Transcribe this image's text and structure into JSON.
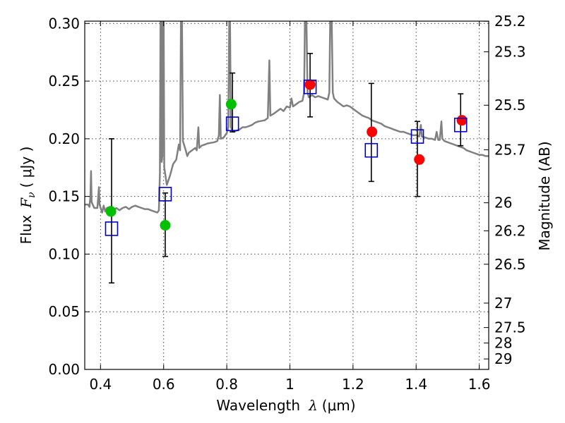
{
  "chart_data": {
    "type": "scatter",
    "xlabel_prefix": "Wavelength",
    "xlabel_lambda": "λ",
    "xlabel_units": "(μm)",
    "ylabel_prefix": "Flux",
    "ylabel_symbol": "F",
    "ylabel_sub": "ν",
    "ylabel_units": "( μJy )",
    "ylabel_right": "Magnitude (AB)",
    "xlim": [
      0.35,
      1.63
    ],
    "ylim": [
      0.0,
      0.302
    ],
    "xticks": [
      0.4,
      0.6,
      0.8,
      1.0,
      1.2,
      1.4,
      1.6
    ],
    "xtick_labels": [
      "0.4",
      "0.6",
      "0.8",
      "1",
      "1.2",
      "1.4",
      "1.6"
    ],
    "yticks": [
      0.0,
      0.05,
      0.1,
      0.15,
      0.2,
      0.25,
      0.3
    ],
    "ytick_labels": [
      "0.00",
      "0.05",
      "0.10",
      "0.15",
      "0.20",
      "0.25",
      "0.30"
    ],
    "right_ticks": [
      {
        "label": "25.2",
        "flux": 0.3019
      },
      {
        "label": "25.3",
        "flux": 0.2754
      },
      {
        "label": "25.5",
        "flux": 0.2291
      },
      {
        "label": "25.7",
        "flux": 0.1905
      },
      {
        "label": "26",
        "flux": 0.1445
      },
      {
        "label": "26.2",
        "flux": 0.1202
      },
      {
        "label": "26.5",
        "flux": 0.0912
      },
      {
        "label": "27",
        "flux": 0.0575
      },
      {
        "label": "27.5",
        "flux": 0.0363
      },
      {
        "label": "28",
        "flux": 0.0229
      },
      {
        "label": "29",
        "flux": 0.0091
      }
    ],
    "grid": true,
    "colors": {
      "model": "#808080",
      "green": "#00c000",
      "red": "#ff0000",
      "square": "#0000cc",
      "errorbar": "#000000"
    },
    "model_spectrum": [
      [
        0.35,
        0.143
      ],
      [
        0.36,
        0.143
      ],
      [
        0.365,
        0.141
      ],
      [
        0.368,
        0.15
      ],
      [
        0.37,
        0.172
      ],
      [
        0.372,
        0.145
      ],
      [
        0.38,
        0.14
      ],
      [
        0.39,
        0.14
      ],
      [
        0.395,
        0.158
      ],
      [
        0.397,
        0.143
      ],
      [
        0.405,
        0.136
      ],
      [
        0.41,
        0.142
      ],
      [
        0.415,
        0.137
      ],
      [
        0.42,
        0.14
      ],
      [
        0.43,
        0.141
      ],
      [
        0.44,
        0.137
      ],
      [
        0.45,
        0.14
      ],
      [
        0.46,
        0.138
      ],
      [
        0.47,
        0.14
      ],
      [
        0.48,
        0.141
      ],
      [
        0.49,
        0.139
      ],
      [
        0.5,
        0.141
      ],
      [
        0.51,
        0.142
      ],
      [
        0.52,
        0.141
      ],
      [
        0.53,
        0.14
      ],
      [
        0.54,
        0.139
      ],
      [
        0.55,
        0.139
      ],
      [
        0.56,
        0.138
      ],
      [
        0.57,
        0.137
      ],
      [
        0.58,
        0.136
      ],
      [
        0.585,
        0.138
      ],
      [
        0.588,
        0.17
      ],
      [
        0.59,
        0.31
      ],
      [
        0.592,
        0.31
      ],
      [
        0.594,
        0.18
      ],
      [
        0.596,
        0.185
      ],
      [
        0.598,
        0.31
      ],
      [
        0.6,
        0.31
      ],
      [
        0.602,
        0.175
      ],
      [
        0.61,
        0.16
      ],
      [
        0.62,
        0.168
      ],
      [
        0.63,
        0.178
      ],
      [
        0.64,
        0.182
      ],
      [
        0.648,
        0.195
      ],
      [
        0.652,
        0.19
      ],
      [
        0.655,
        0.31
      ],
      [
        0.658,
        0.31
      ],
      [
        0.661,
        0.198
      ],
      [
        0.67,
        0.19
      ],
      [
        0.675,
        0.185
      ],
      [
        0.68,
        0.188
      ],
      [
        0.69,
        0.19
      ],
      [
        0.7,
        0.192
      ],
      [
        0.705,
        0.19
      ],
      [
        0.71,
        0.21
      ],
      [
        0.713,
        0.192
      ],
      [
        0.72,
        0.194
      ],
      [
        0.74,
        0.196
      ],
      [
        0.76,
        0.197
      ],
      [
        0.77,
        0.198
      ],
      [
        0.775,
        0.203
      ],
      [
        0.778,
        0.238
      ],
      [
        0.781,
        0.2
      ],
      [
        0.79,
        0.201
      ],
      [
        0.795,
        0.203
      ],
      [
        0.8,
        0.205
      ],
      [
        0.805,
        0.21
      ],
      [
        0.808,
        0.31
      ],
      [
        0.81,
        0.31
      ],
      [
        0.813,
        0.21
      ],
      [
        0.82,
        0.206
      ],
      [
        0.83,
        0.207
      ],
      [
        0.84,
        0.208
      ],
      [
        0.85,
        0.21
      ],
      [
        0.86,
        0.21
      ],
      [
        0.87,
        0.211
      ],
      [
        0.88,
        0.212
      ],
      [
        0.89,
        0.214
      ],
      [
        0.9,
        0.215
      ],
      [
        0.92,
        0.216
      ],
      [
        0.93,
        0.218
      ],
      [
        0.935,
        0.268
      ],
      [
        0.938,
        0.22
      ],
      [
        0.95,
        0.222
      ],
      [
        0.96,
        0.224
      ],
      [
        0.97,
        0.226
      ],
      [
        0.98,
        0.224
      ],
      [
        0.99,
        0.228
      ],
      [
        1.0,
        0.227
      ],
      [
        1.005,
        0.235
      ],
      [
        1.01,
        0.228
      ],
      [
        1.02,
        0.23
      ],
      [
        1.03,
        0.232
      ],
      [
        1.04,
        0.233
      ],
      [
        1.045,
        0.24
      ],
      [
        1.048,
        0.31
      ],
      [
        1.052,
        0.31
      ],
      [
        1.056,
        0.24
      ],
      [
        1.06,
        0.236
      ],
      [
        1.07,
        0.238
      ],
      [
        1.08,
        0.236
      ],
      [
        1.09,
        0.237
      ],
      [
        1.1,
        0.236
      ],
      [
        1.11,
        0.235
      ],
      [
        1.12,
        0.234
      ],
      [
        1.125,
        0.24
      ],
      [
        1.128,
        0.31
      ],
      [
        1.132,
        0.31
      ],
      [
        1.136,
        0.24
      ],
      [
        1.14,
        0.235
      ],
      [
        1.15,
        0.232
      ],
      [
        1.16,
        0.23
      ],
      [
        1.17,
        0.228
      ],
      [
        1.18,
        0.229
      ],
      [
        1.19,
        0.228
      ],
      [
        1.2,
        0.226
      ],
      [
        1.21,
        0.224
      ],
      [
        1.22,
        0.222
      ],
      [
        1.23,
        0.22
      ],
      [
        1.24,
        0.219
      ],
      [
        1.25,
        0.218
      ],
      [
        1.26,
        0.216
      ],
      [
        1.27,
        0.215
      ],
      [
        1.28,
        0.214
      ],
      [
        1.29,
        0.213
      ],
      [
        1.3,
        0.211
      ],
      [
        1.31,
        0.21
      ],
      [
        1.32,
        0.209
      ],
      [
        1.33,
        0.208
      ],
      [
        1.34,
        0.207
      ],
      [
        1.35,
        0.206
      ],
      [
        1.36,
        0.206
      ],
      [
        1.37,
        0.205
      ],
      [
        1.38,
        0.204
      ],
      [
        1.39,
        0.203
      ],
      [
        1.4,
        0.203
      ],
      [
        1.41,
        0.202
      ],
      [
        1.415,
        0.212
      ],
      [
        1.418,
        0.202
      ],
      [
        1.43,
        0.201
      ],
      [
        1.44,
        0.2
      ],
      [
        1.45,
        0.2
      ],
      [
        1.46,
        0.199
      ],
      [
        1.465,
        0.206
      ],
      [
        1.47,
        0.199
      ],
      [
        1.475,
        0.199
      ],
      [
        1.48,
        0.215
      ],
      [
        1.483,
        0.2
      ],
      [
        1.49,
        0.198
      ],
      [
        1.5,
        0.197
      ],
      [
        1.51,
        0.196
      ],
      [
        1.52,
        0.195
      ],
      [
        1.53,
        0.194
      ],
      [
        1.54,
        0.193
      ],
      [
        1.55,
        0.192
      ],
      [
        1.56,
        0.19
      ],
      [
        1.57,
        0.189
      ],
      [
        1.58,
        0.188
      ],
      [
        1.59,
        0.187
      ],
      [
        1.6,
        0.186
      ],
      [
        1.61,
        0.186
      ],
      [
        1.62,
        0.185
      ],
      [
        1.63,
        0.185
      ]
    ],
    "green_points": [
      {
        "x": 0.433,
        "y": 0.137
      },
      {
        "x": 0.605,
        "y": 0.125
      },
      {
        "x": 0.814,
        "y": 0.23
      }
    ],
    "red_points": [
      {
        "x": 1.064,
        "y": 0.247
      },
      {
        "x": 1.26,
        "y": 0.206
      },
      {
        "x": 1.41,
        "y": 0.182
      },
      {
        "x": 1.545,
        "y": 0.216
      }
    ],
    "square_points": [
      {
        "x": 0.435,
        "y": 0.122,
        "lo": 0.075,
        "hi": 0.2
      },
      {
        "x": 0.605,
        "y": 0.152,
        "lo": 0.098,
        "hi": 0.153
      },
      {
        "x": 0.818,
        "y": 0.213,
        "lo": 0.206,
        "hi": 0.257
      },
      {
        "x": 1.064,
        "y": 0.245,
        "lo": 0.219,
        "hi": 0.274
      },
      {
        "x": 1.258,
        "y": 0.19,
        "lo": 0.163,
        "hi": 0.248
      },
      {
        "x": 1.404,
        "y": 0.202,
        "lo": 0.15,
        "hi": 0.215
      },
      {
        "x": 1.541,
        "y": 0.212,
        "lo": 0.194,
        "hi": 0.239
      }
    ]
  }
}
